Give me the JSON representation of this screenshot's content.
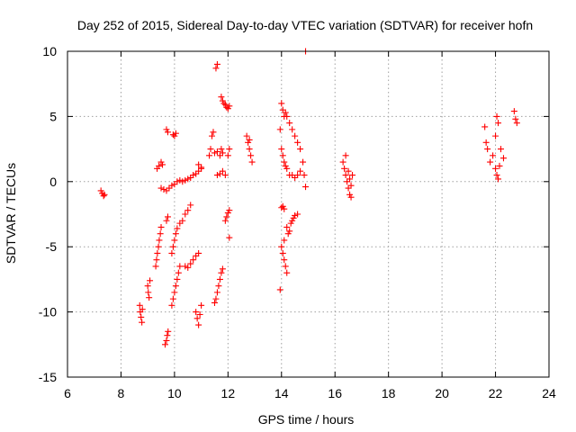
{
  "chart_data": {
    "type": "scatter",
    "title": "Day 252 of 2015, Sidereal Day-to-day VTEC variation (SDTVAR) for receiver hofn",
    "xlabel": "GPS time / hours",
    "ylabel": "SDTVAR / TECUs",
    "xlim": [
      6,
      24
    ],
    "ylim": [
      -15,
      10
    ],
    "xticks": [
      "6",
      "8",
      "10",
      "12",
      "14",
      "16",
      "18",
      "20",
      "22",
      "24"
    ],
    "yticks": [
      "-15",
      "-10",
      "-5",
      "0",
      "5",
      "10"
    ],
    "grid": true,
    "marker": "+",
    "color": "#ff0000",
    "series": [
      {
        "name": "SDTVAR",
        "points": [
          [
            7.25,
            -0.7
          ],
          [
            7.3,
            -0.9
          ],
          [
            7.35,
            -1.1
          ],
          [
            7.38,
            -1.0
          ],
          [
            8.7,
            -9.5
          ],
          [
            8.72,
            -10.0
          ],
          [
            8.75,
            -10.4
          ],
          [
            8.78,
            -10.8
          ],
          [
            8.8,
            -9.8
          ],
          [
            9.0,
            -8.0
          ],
          [
            9.02,
            -8.5
          ],
          [
            9.05,
            -8.9
          ],
          [
            9.08,
            -7.6
          ],
          [
            9.3,
            -6.5
          ],
          [
            9.33,
            -6.0
          ],
          [
            9.36,
            -5.5
          ],
          [
            9.4,
            -5.0
          ],
          [
            9.43,
            -4.5
          ],
          [
            9.47,
            -4.0
          ],
          [
            9.5,
            -3.5
          ],
          [
            9.35,
            1.0
          ],
          [
            9.42,
            1.2
          ],
          [
            9.5,
            1.5
          ],
          [
            9.55,
            1.3
          ],
          [
            9.5,
            -0.5
          ],
          [
            9.6,
            -0.6
          ],
          [
            9.7,
            -0.7
          ],
          [
            9.8,
            -0.5
          ],
          [
            9.65,
            -12.5
          ],
          [
            9.7,
            -12.2
          ],
          [
            9.73,
            -11.8
          ],
          [
            9.76,
            -11.5
          ],
          [
            9.7,
            -3.0
          ],
          [
            9.75,
            -2.7
          ],
          [
            9.7,
            4.0
          ],
          [
            9.75,
            3.8
          ],
          [
            9.9,
            -9.5
          ],
          [
            9.95,
            -9.0
          ],
          [
            10.0,
            -8.5
          ],
          [
            10.05,
            -8.0
          ],
          [
            10.1,
            -7.5
          ],
          [
            10.15,
            -7.0
          ],
          [
            10.2,
            -6.5
          ],
          [
            9.9,
            -5.5
          ],
          [
            9.95,
            -5.0
          ],
          [
            10.0,
            -4.5
          ],
          [
            10.05,
            -4.0
          ],
          [
            10.1,
            -3.6
          ],
          [
            10.2,
            -3.2
          ],
          [
            10.3,
            -3.0
          ],
          [
            10.4,
            -2.5
          ],
          [
            10.5,
            -2.2
          ],
          [
            10.6,
            -1.8
          ],
          [
            9.95,
            3.6
          ],
          [
            10.0,
            3.5
          ],
          [
            10.05,
            3.7
          ],
          [
            9.9,
            -0.3
          ],
          [
            10.0,
            -0.2
          ],
          [
            10.1,
            0.0
          ],
          [
            10.2,
            0.1
          ],
          [
            10.3,
            0.0
          ],
          [
            10.4,
            0.1
          ],
          [
            10.5,
            0.2
          ],
          [
            10.6,
            0.3
          ],
          [
            10.7,
            0.5
          ],
          [
            10.8,
            0.6
          ],
          [
            10.9,
            0.8
          ],
          [
            11.0,
            1.0
          ],
          [
            10.4,
            -6.5
          ],
          [
            10.5,
            -6.6
          ],
          [
            10.6,
            -6.3
          ],
          [
            10.7,
            -6.0
          ],
          [
            10.8,
            -5.7
          ],
          [
            10.9,
            -5.5
          ],
          [
            10.8,
            -10.0
          ],
          [
            10.85,
            -10.5
          ],
          [
            10.9,
            -11.0
          ],
          [
            10.95,
            -10.2
          ],
          [
            11.0,
            -9.5
          ],
          [
            10.9,
            1.3
          ],
          [
            11.0,
            1.1
          ],
          [
            11.3,
            2.0
          ],
          [
            11.35,
            2.5
          ],
          [
            11.4,
            3.5
          ],
          [
            11.45,
            3.8
          ],
          [
            11.5,
            2.2
          ],
          [
            11.6,
            2.3
          ],
          [
            11.7,
            2.0
          ],
          [
            11.75,
            2.5
          ],
          [
            11.8,
            2.2
          ],
          [
            11.5,
            -9.3
          ],
          [
            11.55,
            -9.0
          ],
          [
            11.6,
            -8.5
          ],
          [
            11.65,
            -8.0
          ],
          [
            11.7,
            -7.5
          ],
          [
            11.75,
            -7.0
          ],
          [
            11.8,
            -6.7
          ],
          [
            11.55,
            8.7
          ],
          [
            11.6,
            9.0
          ],
          [
            11.6,
            0.5
          ],
          [
            11.7,
            0.6
          ],
          [
            11.8,
            0.8
          ],
          [
            11.9,
            0.5
          ],
          [
            11.75,
            6.5
          ],
          [
            11.8,
            6.2
          ],
          [
            11.85,
            6.0
          ],
          [
            11.9,
            5.9
          ],
          [
            11.95,
            5.7
          ],
          [
            12.0,
            5.6
          ],
          [
            12.05,
            5.8
          ],
          [
            11.9,
            -3.0
          ],
          [
            11.95,
            -2.7
          ],
          [
            12.0,
            -2.4
          ],
          [
            12.05,
            -2.2
          ],
          [
            12.0,
            2.0
          ],
          [
            12.05,
            2.5
          ],
          [
            12.05,
            -4.3
          ],
          [
            12.7,
            3.5
          ],
          [
            12.75,
            3.0
          ],
          [
            12.8,
            2.5
          ],
          [
            12.85,
            2.0
          ],
          [
            12.9,
            1.5
          ],
          [
            12.8,
            3.2
          ],
          [
            13.95,
            4.0
          ],
          [
            14.0,
            6.0
          ],
          [
            14.05,
            5.5
          ],
          [
            14.1,
            5.0
          ],
          [
            14.15,
            5.3
          ],
          [
            14.2,
            5.0
          ],
          [
            14.3,
            4.5
          ],
          [
            14.4,
            4.0
          ],
          [
            14.5,
            3.5
          ],
          [
            14.6,
            3.0
          ],
          [
            14.7,
            2.5
          ],
          [
            14.0,
            2.5
          ],
          [
            14.05,
            2.0
          ],
          [
            14.1,
            1.5
          ],
          [
            14.15,
            1.2
          ],
          [
            14.2,
            1.0
          ],
          [
            14.3,
            0.5
          ],
          [
            14.4,
            0.5
          ],
          [
            14.5,
            0.3
          ],
          [
            14.6,
            0.5
          ],
          [
            14.7,
            0.8
          ],
          [
            14.8,
            1.5
          ],
          [
            14.85,
            0.5
          ],
          [
            14.9,
            -0.4
          ],
          [
            14.0,
            -2.0
          ],
          [
            14.05,
            -1.9
          ],
          [
            14.1,
            -2.1
          ],
          [
            14.0,
            -5.0
          ],
          [
            14.05,
            -5.5
          ],
          [
            14.1,
            -6.0
          ],
          [
            14.15,
            -6.5
          ],
          [
            14.2,
            -7.0
          ],
          [
            14.1,
            -4.5
          ],
          [
            14.2,
            -3.5
          ],
          [
            14.25,
            -4.0
          ],
          [
            14.3,
            -3.8
          ],
          [
            14.35,
            -3.2
          ],
          [
            14.4,
            -3.0
          ],
          [
            14.45,
            -2.8
          ],
          [
            14.5,
            -2.6
          ],
          [
            14.6,
            -2.5
          ],
          [
            13.95,
            -8.3
          ],
          [
            14.9,
            10.0
          ],
          [
            16.3,
            1.5
          ],
          [
            16.35,
            1.0
          ],
          [
            16.4,
            0.5
          ],
          [
            16.45,
            0.0
          ],
          [
            16.5,
            -0.5
          ],
          [
            16.55,
            -1.0
          ],
          [
            16.6,
            -1.2
          ],
          [
            16.4,
            2.0
          ],
          [
            16.5,
            0.8
          ],
          [
            16.55,
            0.2
          ],
          [
            16.6,
            -0.3
          ],
          [
            16.65,
            0.5
          ],
          [
            21.6,
            4.2
          ],
          [
            21.65,
            3.0
          ],
          [
            21.7,
            2.5
          ],
          [
            21.8,
            1.5
          ],
          [
            21.9,
            2.0
          ],
          [
            22.0,
            3.5
          ],
          [
            22.05,
            5.0
          ],
          [
            22.1,
            4.5
          ],
          [
            22.0,
            1.0
          ],
          [
            22.05,
            0.5
          ],
          [
            22.1,
            0.2
          ],
          [
            22.15,
            1.2
          ],
          [
            22.2,
            2.5
          ],
          [
            22.3,
            1.8
          ],
          [
            22.7,
            5.4
          ],
          [
            22.75,
            4.8
          ],
          [
            22.8,
            4.5
          ]
        ]
      }
    ]
  }
}
